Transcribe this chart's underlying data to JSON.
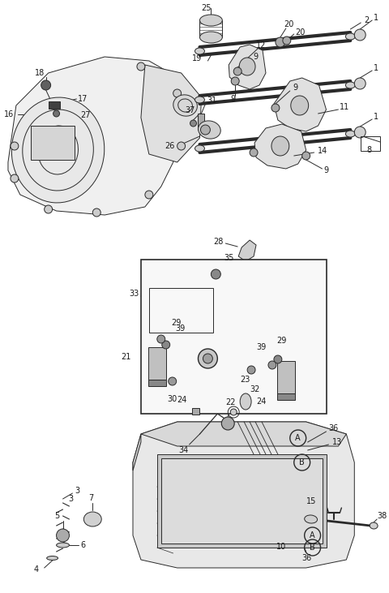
{
  "bg_color": "#ffffff",
  "line_color": "#2a2a2a",
  "label_color": "#1a1a1a",
  "lfs": 7.0,
  "lw": 0.7,
  "fig_w": 4.8,
  "fig_h": 7.31,
  "dpi": 100,
  "xlim": [
    0,
    480
  ],
  "ylim": [
    0,
    731
  ]
}
